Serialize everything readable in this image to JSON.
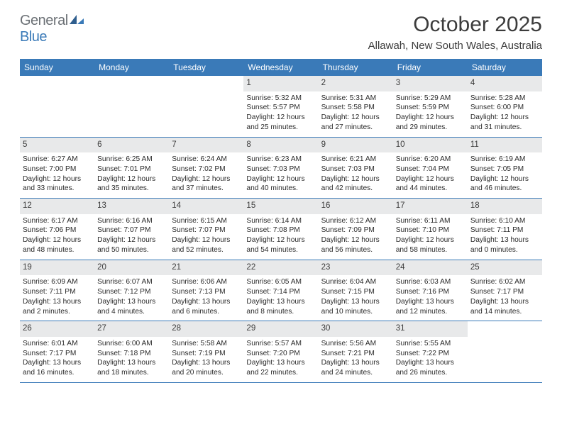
{
  "logo": {
    "text1": "General",
    "text2": "Blue"
  },
  "title": "October 2025",
  "location": "Allawah, New South Wales, Australia",
  "colors": {
    "header_blue": "#3a7ab8",
    "gray_bg": "#e8e9ea",
    "text": "#2a2a2a",
    "title_text": "#3c3c3c",
    "logo_gray": "#6b7075"
  },
  "dayNames": [
    "Sunday",
    "Monday",
    "Tuesday",
    "Wednesday",
    "Thursday",
    "Friday",
    "Saturday"
  ],
  "weeks": [
    [
      {
        "blank": true
      },
      {
        "blank": true
      },
      {
        "blank": true
      },
      {
        "num": "1",
        "sunrise": "5:32 AM",
        "sunset": "5:57 PM",
        "dayh": "12",
        "daym": "25"
      },
      {
        "num": "2",
        "sunrise": "5:31 AM",
        "sunset": "5:58 PM",
        "dayh": "12",
        "daym": "27"
      },
      {
        "num": "3",
        "sunrise": "5:29 AM",
        "sunset": "5:59 PM",
        "dayh": "12",
        "daym": "29"
      },
      {
        "num": "4",
        "sunrise": "5:28 AM",
        "sunset": "6:00 PM",
        "dayh": "12",
        "daym": "31"
      }
    ],
    [
      {
        "num": "5",
        "sunrise": "6:27 AM",
        "sunset": "7:00 PM",
        "dayh": "12",
        "daym": "33"
      },
      {
        "num": "6",
        "sunrise": "6:25 AM",
        "sunset": "7:01 PM",
        "dayh": "12",
        "daym": "35"
      },
      {
        "num": "7",
        "sunrise": "6:24 AM",
        "sunset": "7:02 PM",
        "dayh": "12",
        "daym": "37"
      },
      {
        "num": "8",
        "sunrise": "6:23 AM",
        "sunset": "7:03 PM",
        "dayh": "12",
        "daym": "40"
      },
      {
        "num": "9",
        "sunrise": "6:21 AM",
        "sunset": "7:03 PM",
        "dayh": "12",
        "daym": "42"
      },
      {
        "num": "10",
        "sunrise": "6:20 AM",
        "sunset": "7:04 PM",
        "dayh": "12",
        "daym": "44"
      },
      {
        "num": "11",
        "sunrise": "6:19 AM",
        "sunset": "7:05 PM",
        "dayh": "12",
        "daym": "46"
      }
    ],
    [
      {
        "num": "12",
        "sunrise": "6:17 AM",
        "sunset": "7:06 PM",
        "dayh": "12",
        "daym": "48"
      },
      {
        "num": "13",
        "sunrise": "6:16 AM",
        "sunset": "7:07 PM",
        "dayh": "12",
        "daym": "50"
      },
      {
        "num": "14",
        "sunrise": "6:15 AM",
        "sunset": "7:07 PM",
        "dayh": "12",
        "daym": "52"
      },
      {
        "num": "15",
        "sunrise": "6:14 AM",
        "sunset": "7:08 PM",
        "dayh": "12",
        "daym": "54"
      },
      {
        "num": "16",
        "sunrise": "6:12 AM",
        "sunset": "7:09 PM",
        "dayh": "12",
        "daym": "56"
      },
      {
        "num": "17",
        "sunrise": "6:11 AM",
        "sunset": "7:10 PM",
        "dayh": "12",
        "daym": "58"
      },
      {
        "num": "18",
        "sunrise": "6:10 AM",
        "sunset": "7:11 PM",
        "dayh": "13",
        "daym": "0"
      }
    ],
    [
      {
        "num": "19",
        "sunrise": "6:09 AM",
        "sunset": "7:11 PM",
        "dayh": "13",
        "daym": "2"
      },
      {
        "num": "20",
        "sunrise": "6:07 AM",
        "sunset": "7:12 PM",
        "dayh": "13",
        "daym": "4"
      },
      {
        "num": "21",
        "sunrise": "6:06 AM",
        "sunset": "7:13 PM",
        "dayh": "13",
        "daym": "6"
      },
      {
        "num": "22",
        "sunrise": "6:05 AM",
        "sunset": "7:14 PM",
        "dayh": "13",
        "daym": "8"
      },
      {
        "num": "23",
        "sunrise": "6:04 AM",
        "sunset": "7:15 PM",
        "dayh": "13",
        "daym": "10"
      },
      {
        "num": "24",
        "sunrise": "6:03 AM",
        "sunset": "7:16 PM",
        "dayh": "13",
        "daym": "12"
      },
      {
        "num": "25",
        "sunrise": "6:02 AM",
        "sunset": "7:17 PM",
        "dayh": "13",
        "daym": "14"
      }
    ],
    [
      {
        "num": "26",
        "sunrise": "6:01 AM",
        "sunset": "7:17 PM",
        "dayh": "13",
        "daym": "16"
      },
      {
        "num": "27",
        "sunrise": "6:00 AM",
        "sunset": "7:18 PM",
        "dayh": "13",
        "daym": "18"
      },
      {
        "num": "28",
        "sunrise": "5:58 AM",
        "sunset": "7:19 PM",
        "dayh": "13",
        "daym": "20"
      },
      {
        "num": "29",
        "sunrise": "5:57 AM",
        "sunset": "7:20 PM",
        "dayh": "13",
        "daym": "22"
      },
      {
        "num": "30",
        "sunrise": "5:56 AM",
        "sunset": "7:21 PM",
        "dayh": "13",
        "daym": "24"
      },
      {
        "num": "31",
        "sunrise": "5:55 AM",
        "sunset": "7:22 PM",
        "dayh": "13",
        "daym": "26"
      },
      {
        "blank": true
      }
    ]
  ]
}
